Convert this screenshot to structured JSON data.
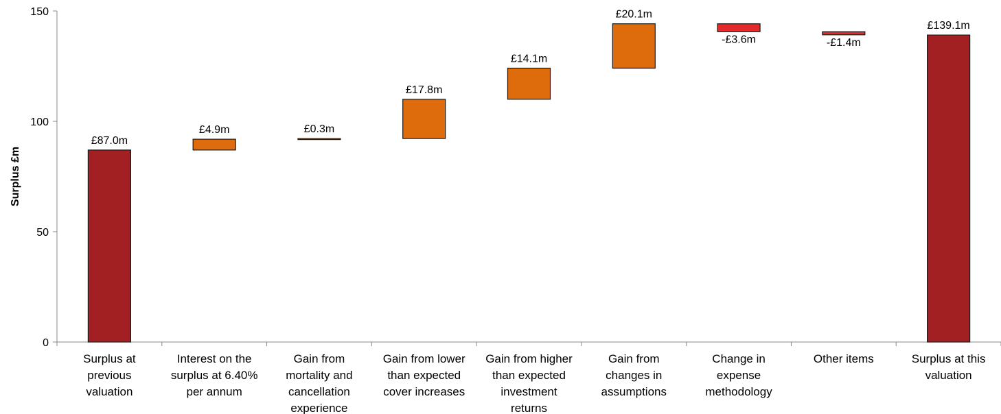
{
  "chart_data": {
    "type": "bar",
    "subtype": "waterfall",
    "ylabel": "Surplus £m",
    "ylim": [
      0,
      150
    ],
    "yticks": [
      0,
      50,
      100,
      150
    ],
    "grid": false,
    "legend": "none",
    "categories": [
      [
        "Surplus at",
        "previous",
        "valuation"
      ],
      [
        "Interest on the",
        "surplus at 6.40%",
        "per annum"
      ],
      [
        "Gain from",
        "mortality and",
        "cancellation",
        "experience"
      ],
      [
        "Gain from lower",
        "than expected",
        "cover increases"
      ],
      [
        "Gain from higher",
        "than expected",
        "investment",
        "returns"
      ],
      [
        "Gain from",
        "changes in",
        "assumptions"
      ],
      [
        "Change in",
        "expense",
        "methodology"
      ],
      [
        "Other items"
      ],
      [
        "Surplus at this",
        "valuation"
      ]
    ],
    "values": [
      87.0,
      4.9,
      0.3,
      17.8,
      14.1,
      20.1,
      -3.6,
      -1.4,
      139.1
    ],
    "kinds": [
      "total",
      "delta",
      "delta",
      "delta",
      "delta",
      "delta",
      "delta",
      "delta",
      "total"
    ],
    "value_labels": [
      "£87.0m",
      "£4.9m",
      "£0.3m",
      "£17.8m",
      "£14.1m",
      "£20.1m",
      "-£3.6m",
      "-£1.4m",
      "£139.1m"
    ],
    "colors": {
      "total": "#a21f22",
      "increase": "#de6b0c",
      "decrease": "#e3292a",
      "axis": "#888888"
    }
  }
}
